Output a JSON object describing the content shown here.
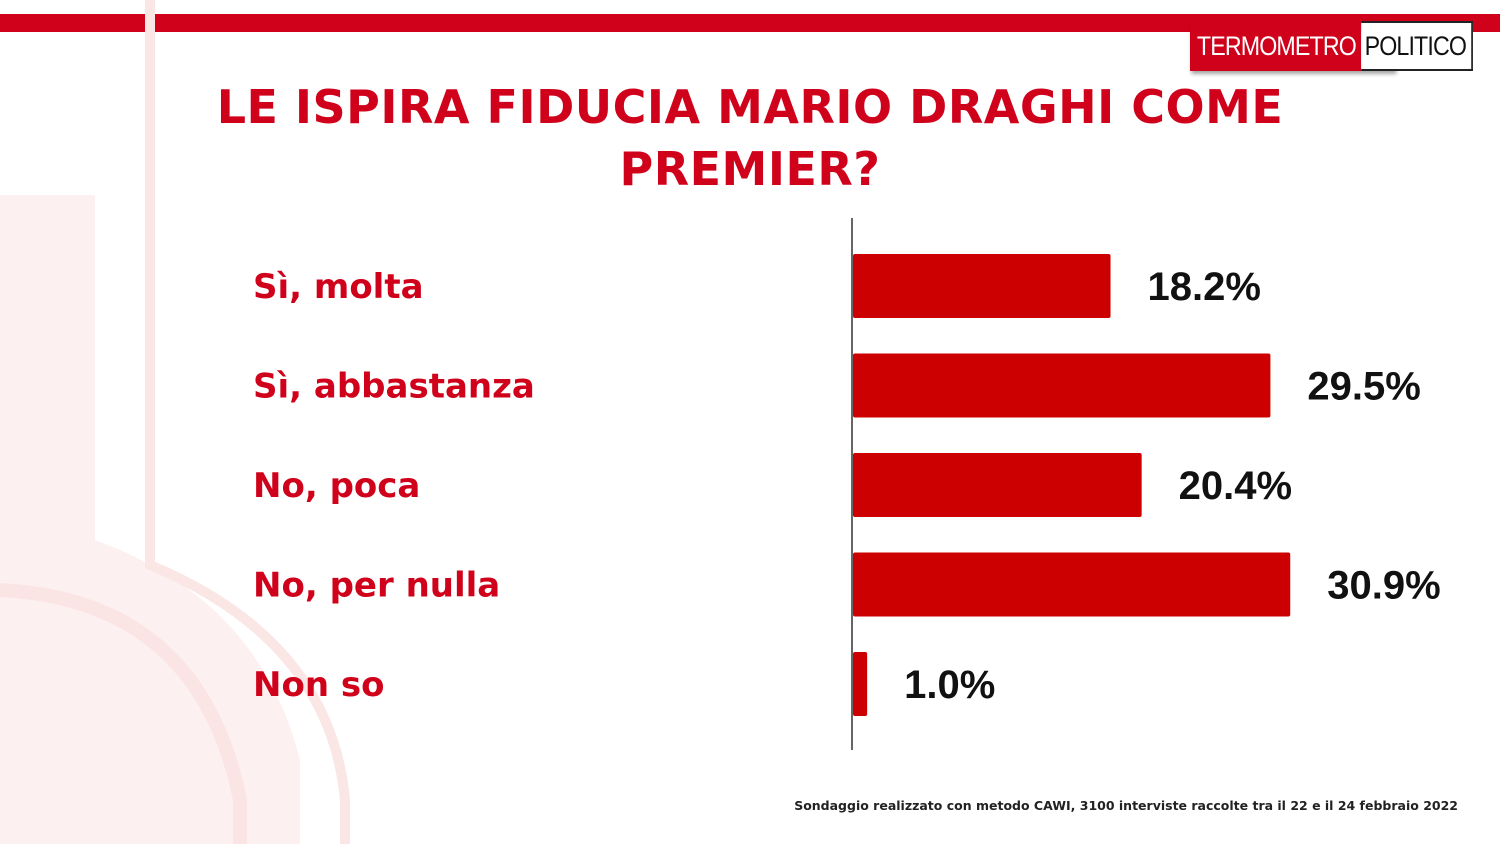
{
  "brand": {
    "logo_left": "TERMOMETRO",
    "logo_right": "POLITICO",
    "accent_color": "#d0021b",
    "bar_color": "#cc0000"
  },
  "chart_data": {
    "type": "bar",
    "orientation": "horizontal",
    "title_lines": [
      "LE ISPIRA FIDUCIA MARIO DRAGHI COME",
      "PREMIER?"
    ],
    "categories": [
      "Sì, molta",
      "Sì, abbastanza",
      "No, poca",
      "No, per nulla",
      "Non so"
    ],
    "values": [
      18.2,
      29.5,
      20.4,
      30.9,
      1.0
    ],
    "value_labels": [
      "18.2%",
      "29.5%",
      "20.4%",
      "30.9%",
      "1.0%"
    ],
    "unit": "%",
    "xlim": [
      0,
      32
    ],
    "grid": false,
    "legend": "none"
  },
  "footnote": "Sondaggio realizzato con metodo CAWI, 3100 interviste raccolte tra il 22 e il 24 febbraio 2022"
}
